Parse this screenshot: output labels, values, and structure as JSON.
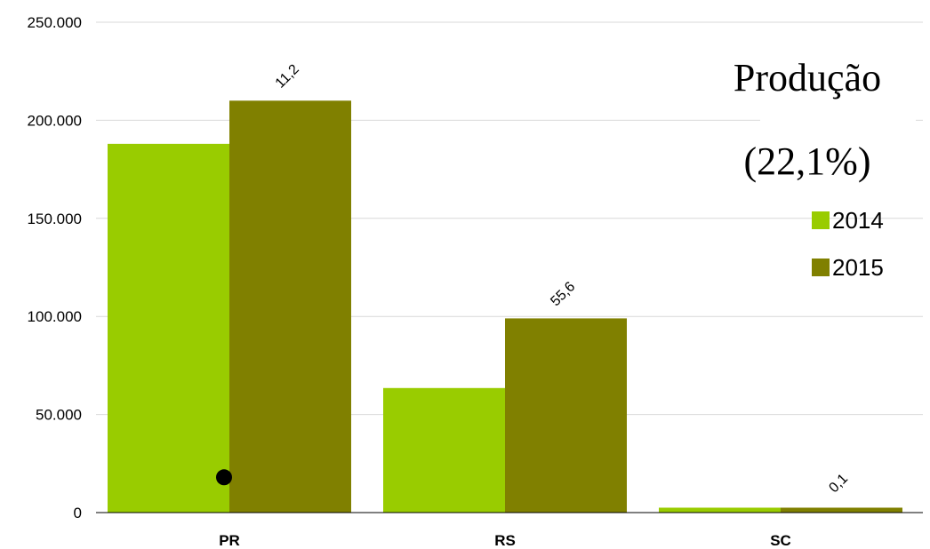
{
  "chart_data": {
    "type": "bar",
    "title": "Produção",
    "subtitle": "(22,1%)",
    "categories": [
      "PR",
      "RS",
      "SC"
    ],
    "series": [
      {
        "name": "2014",
        "color": "#99CC00",
        "values": [
          188000,
          63500,
          2500
        ]
      },
      {
        "name": "2015",
        "color": "#808000",
        "values": [
          210000,
          99000,
          2500
        ]
      }
    ],
    "data_labels": [
      "11,2",
      "55,6",
      "0,1"
    ],
    "ylim": [
      0,
      250000
    ],
    "yticks": [
      0,
      50000,
      100000,
      150000,
      200000,
      250000
    ],
    "ytick_labels": [
      "0",
      "50.000",
      "100.000",
      "150.000",
      "200.000",
      "250.000"
    ],
    "grid": true,
    "legend_position": "right",
    "marker_color": "#000000"
  }
}
